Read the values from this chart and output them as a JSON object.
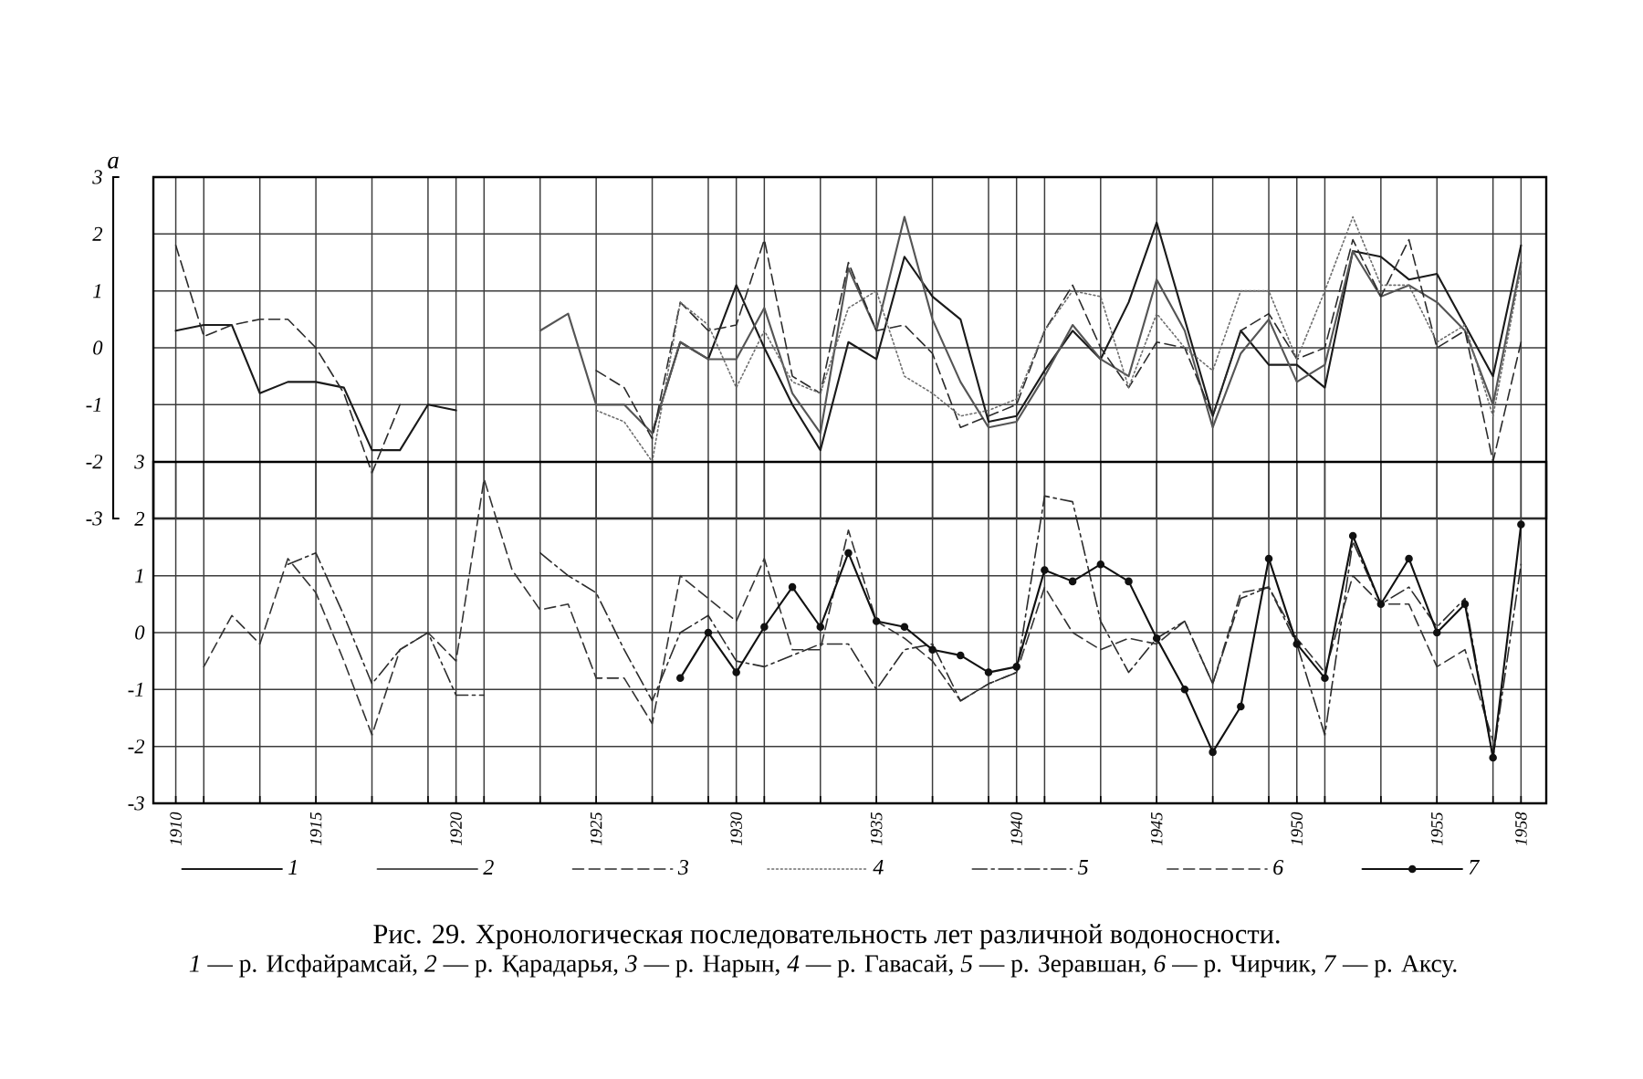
{
  "chart_data": [
    {
      "type": "line",
      "ylabel": "a",
      "x": [
        1910,
        1911,
        1912,
        1913,
        1914,
        1915,
        1916,
        1917,
        1918,
        1919,
        1920,
        1921,
        1922,
        1923,
        1924,
        1925,
        1926,
        1927,
        1928,
        1929,
        1930,
        1931,
        1932,
        1933,
        1934,
        1935,
        1936,
        1937,
        1938,
        1939,
        1940,
        1941,
        1942,
        1943,
        1944,
        1945,
        1946,
        1947,
        1948,
        1949,
        1950,
        1951,
        1952,
        1953,
        1954,
        1955,
        1956,
        1957,
        1958
      ],
      "xlim": [
        1909.2,
        1958.9
      ],
      "xticks": [
        1910,
        {
          "value": 1911,
          "label": null
        },
        {
          "value": 1913,
          "label": null
        },
        1915,
        {
          "value": 1917,
          "label": null
        },
        {
          "value": 1919,
          "label": null
        },
        1920,
        {
          "value": 1921,
          "label": null
        },
        {
          "value": 1923,
          "label": null
        },
        1925,
        {
          "value": 1927,
          "label": null
        },
        {
          "value": 1929,
          "label": null
        },
        1930,
        {
          "value": 1931,
          "label": null
        },
        {
          "value": 1933,
          "label": null
        },
        1935,
        {
          "value": 1937,
          "label": null
        },
        {
          "value": 1939,
          "label": null
        },
        1940,
        {
          "value": 1941,
          "label": null
        },
        {
          "value": 1943,
          "label": null
        },
        1945,
        {
          "value": 1947,
          "label": null
        },
        {
          "value": 1949,
          "label": null
        },
        1950,
        {
          "value": 1951,
          "label": null
        },
        {
          "value": 1953,
          "label": null
        },
        1955,
        {
          "value": 1957,
          "label": null
        },
        1958
      ],
      "ylim": [
        -3,
        3
      ],
      "yticks": [
        -3,
        -2,
        -1,
        0,
        1,
        2,
        3
      ],
      "tick_labels": "y",
      "grid": true,
      "legend": "bottom",
      "series": [
        {
          "name": "1",
          "color": "#1a1a1a",
          "line_style": "solid",
          "values": [
            0.3,
            0.4,
            0.4,
            -0.8,
            -0.6,
            -0.6,
            -0.7,
            -1.8,
            -1.8,
            -1.0,
            -1.1,
            null,
            null,
            null,
            null,
            null,
            null,
            -1.5,
            0.1,
            -0.2,
            1.1,
            0.0,
            -1.0,
            -1.8,
            0.1,
            -0.2,
            1.6,
            0.9,
            0.5,
            -1.3,
            -1.2,
            -0.4,
            0.3,
            -0.2,
            0.8,
            2.2,
            0.5,
            -1.2,
            0.3,
            -0.3,
            -0.3,
            -0.7,
            1.7,
            1.6,
            1.2,
            1.3,
            0.4,
            -0.5,
            1.8
          ]
        },
        {
          "name": "2",
          "color": "#555555",
          "line_style": "solid",
          "values": [
            null,
            null,
            null,
            null,
            null,
            null,
            null,
            null,
            null,
            null,
            null,
            null,
            null,
            0.3,
            0.6,
            -1.0,
            -1.0,
            -1.5,
            0.1,
            -0.2,
            -0.2,
            0.7,
            -0.8,
            -1.5,
            1.4,
            0.3,
            2.3,
            0.5,
            -0.6,
            -1.4,
            -1.3,
            -0.5,
            0.4,
            -0.2,
            -0.5,
            1.2,
            0.3,
            -1.4,
            -0.1,
            0.5,
            -0.6,
            -0.3,
            1.7,
            0.9,
            1.1,
            0.8,
            0.3,
            -1.0,
            1.5
          ]
        },
        {
          "name": "3",
          "color": "#2b2b2b",
          "line_style": "dashed",
          "values": [
            1.8,
            0.2,
            0.4,
            0.5,
            0.5,
            0.0,
            -0.8,
            -2.2,
            -1.0,
            null,
            null,
            null,
            null,
            null,
            null,
            -0.4,
            -0.7,
            -1.6,
            0.8,
            0.3,
            0.4,
            1.9,
            -0.5,
            -0.8,
            1.5,
            0.3,
            0.4,
            -0.1,
            -1.4,
            -1.2,
            -1.0,
            0.3,
            1.1,
            0.0,
            -0.7,
            0.1,
            0.0,
            -1.2,
            0.3,
            0.6,
            -0.2,
            0.0,
            1.9,
            0.9,
            1.9,
            0.0,
            0.3,
            -2.0,
            0.1
          ]
        },
        {
          "name": "4",
          "color": "#6e6e6e",
          "line_style": "dotted",
          "values": [
            null,
            null,
            null,
            null,
            null,
            null,
            null,
            null,
            null,
            null,
            null,
            null,
            null,
            null,
            null,
            -1.1,
            -1.3,
            -2.0,
            0.8,
            0.4,
            -0.7,
            0.3,
            -0.6,
            -0.8,
            0.7,
            1.0,
            -0.5,
            -0.8,
            -1.2,
            -1.1,
            -0.9,
            0.3,
            1.0,
            0.9,
            -0.7,
            0.6,
            0.0,
            -0.4,
            1.0,
            1.0,
            -0.2,
            1.0,
            2.3,
            1.1,
            1.1,
            0.1,
            0.4,
            -1.2,
            1.4
          ]
        }
      ]
    },
    {
      "type": "line",
      "title": "Рис. 29. Хронологическая последовательность лет различной водоносности.",
      "annotations": [
        "*1* — р. Исфайрамсай, *2* — р. Қарадарья, *3* — р. Нарын, *4* — р. Гавасай, *5* — р. Зеравшан, *6* — р. Чирчик, *7* — р. Аксу."
      ],
      "x": [
        1911,
        1912,
        1913,
        1914,
        1915,
        1916,
        1917,
        1918,
        1919,
        1920,
        1921,
        1922,
        1923,
        1924,
        1925,
        1926,
        1927,
        1928,
        1929,
        1930,
        1931,
        1932,
        1933,
        1934,
        1935,
        1936,
        1937,
        1938,
        1939,
        1940,
        1941,
        1942,
        1943,
        1944,
        1945,
        1946,
        1947,
        1948,
        1949,
        1950,
        1951,
        1952,
        1953,
        1954,
        1955,
        1956,
        1957,
        1958
      ],
      "xlim": [
        1909.2,
        1958.9
      ],
      "xticks": [
        1910,
        {
          "value": 1911,
          "label": null
        },
        {
          "value": 1913,
          "label": null
        },
        1915,
        {
          "value": 1917,
          "label": null
        },
        {
          "value": 1919,
          "label": null
        },
        1920,
        {
          "value": 1921,
          "label": null
        },
        {
          "value": 1923,
          "label": null
        },
        1925,
        {
          "value": 1927,
          "label": null
        },
        {
          "value": 1929,
          "label": null
        },
        1930,
        {
          "value": 1931,
          "label": null
        },
        {
          "value": 1933,
          "label": null
        },
        1935,
        {
          "value": 1937,
          "label": null
        },
        {
          "value": 1939,
          "label": null
        },
        1940,
        {
          "value": 1941,
          "label": null
        },
        {
          "value": 1943,
          "label": null
        },
        1945,
        {
          "value": 1947,
          "label": null
        },
        {
          "value": 1949,
          "label": null
        },
        1950,
        {
          "value": 1951,
          "label": null
        },
        {
          "value": 1953,
          "label": null
        },
        1955,
        {
          "value": 1957,
          "label": null
        },
        1958
      ],
      "ylim": [
        -3,
        3
      ],
      "yticks": [
        -3,
        -2,
        -1,
        0,
        1,
        2,
        3
      ],
      "grid": true,
      "legend": "bottom",
      "series": [
        {
          "name": "5",
          "color": "#2b2b2b",
          "line_style": "dashdot",
          "values": [
            null,
            null,
            null,
            1.2,
            1.4,
            0.3,
            -0.9,
            -0.3,
            0.0,
            -1.1,
            -1.1,
            null,
            1.4,
            1.0,
            0.7,
            -0.3,
            -1.2,
            0.0,
            0.3,
            -0.5,
            -0.6,
            -0.4,
            -0.2,
            -0.2,
            -1.0,
            -0.3,
            -0.2,
            -1.2,
            -0.9,
            -0.7,
            2.4,
            2.3,
            0.2,
            -0.7,
            -0.1,
            0.2,
            -0.9,
            0.6,
            0.8,
            -0.2,
            -1.8,
            1.6,
            0.5,
            0.8,
            0.1,
            0.6,
            -2.2,
            1.2
          ]
        },
        {
          "name": "6",
          "color": "#333333",
          "line_style": "dashed",
          "values": [
            -0.6,
            0.3,
            -0.2,
            1.3,
            0.7,
            -0.5,
            -1.8,
            -0.3,
            0.0,
            -0.5,
            2.7,
            1.1,
            0.4,
            0.5,
            -0.8,
            -0.8,
            -1.6,
            1.0,
            0.6,
            0.2,
            1.3,
            -0.3,
            -0.3,
            1.8,
            0.2,
            -0.1,
            -0.5,
            -1.2,
            -0.9,
            -0.7,
            0.8,
            0.0,
            -0.3,
            -0.1,
            -0.2,
            0.2,
            -0.9,
            0.7,
            0.8,
            -0.1,
            -0.7,
            1.0,
            0.5,
            0.5,
            -0.6,
            -0.3,
            -1.9,
            null
          ]
        },
        {
          "name": "7",
          "color": "#111111",
          "line_style": "solid",
          "marker": "circle",
          "values": [
            null,
            null,
            null,
            null,
            null,
            null,
            null,
            null,
            null,
            null,
            null,
            null,
            null,
            null,
            null,
            null,
            null,
            -0.8,
            0.0,
            -0.7,
            0.1,
            0.8,
            0.1,
            1.4,
            0.2,
            0.1,
            -0.3,
            -0.4,
            -0.7,
            -0.6,
            1.1,
            0.9,
            1.2,
            0.9,
            -0.1,
            -1.0,
            -2.1,
            -1.3,
            1.3,
            -0.2,
            -0.8,
            1.7,
            0.5,
            1.3,
            0.0,
            0.5,
            -2.2,
            1.9
          ]
        }
      ]
    }
  ]
}
